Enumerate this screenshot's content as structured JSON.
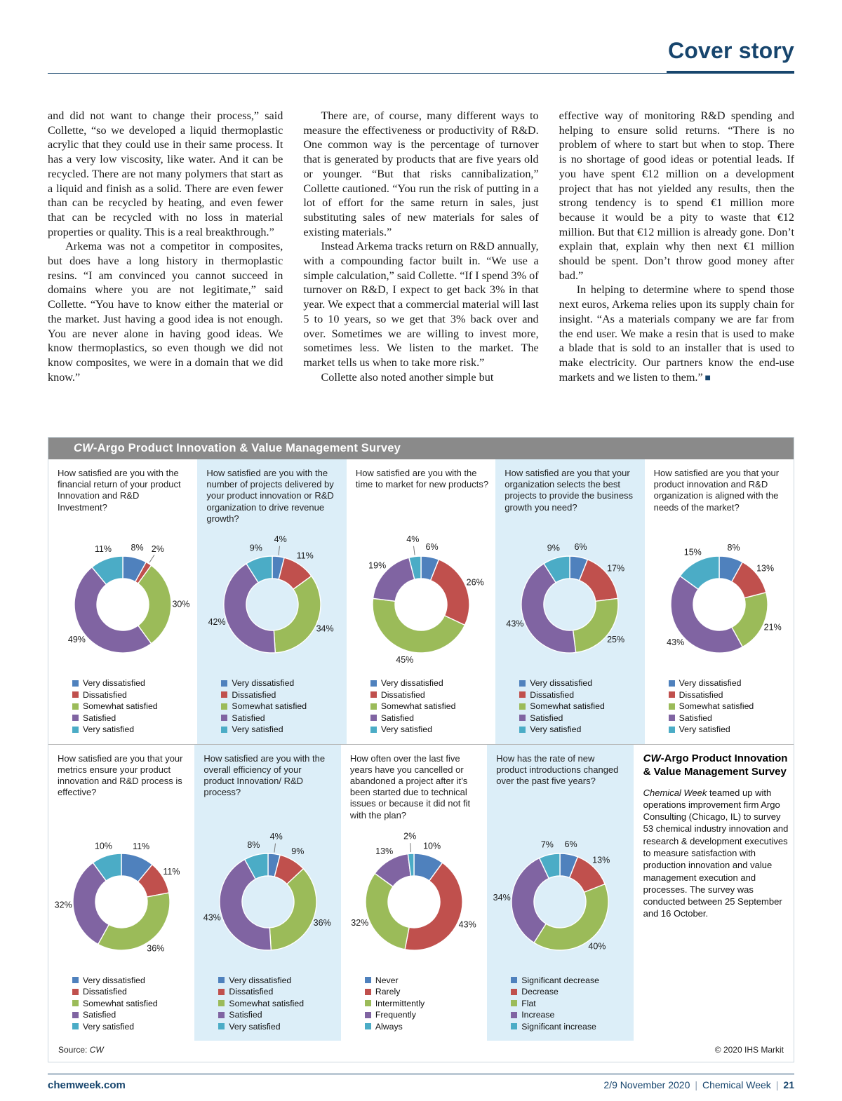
{
  "page": {
    "header_title": "Cover story",
    "footer": {
      "site": "chemweek.com",
      "date": "2/9 November 2020",
      "publication": "Chemical Week",
      "page_number": "21",
      "separator": "|"
    }
  },
  "article": {
    "columns": [
      {
        "paragraphs": [
          {
            "t": "and did not want to change their process,” said Collette, “so we developed a liquid thermoplastic acrylic that they could use in their same process. It has a very low viscosity, like water. And it can be recycled. There are not many polymers that start as a liquid and finish as a solid. There are even fewer than can be recycled by heating, and even fewer that can be recycled with no loss in material properties or quality. This is a real breakthrough.”",
            "ind": false
          },
          {
            "t": "Arkema was not a competitor in composites, but does have a long history in thermoplastic resins. “I am convinced you cannot succeed in domains where you are not legitimate,” said Collette. “You have to know either the material or the market. Just having a good idea is not enough. You are never alone in having good ideas. We know thermoplastics, so even though we did not know composites, we were in a domain that we did know.”",
            "ind": true
          }
        ]
      },
      {
        "paragraphs": [
          {
            "t": "There are, of course, many different ways to measure the effectiveness or productivity of R&D. One common way is the percentage of turnover that is generated by products that are five years old or younger. “But that risks cannibalization,” Collette cautioned. “You run the risk of putting in a lot of effort for the same return in sales, just substituting sales of new materials for sales of existing materials.”",
            "ind": true
          },
          {
            "t": "Instead Arkema tracks return on R&D annually, with a compounding factor built in. “We use a simple calculation,” said Collette. “If I spend 3% of turnover on R&D, I expect to get back 3% in that year. We expect that a commercial material will last 5 to 10 years, so we get that 3% back over and over. Sometimes we are willing to invest more, sometimes less. We listen to the market. The market tells us when to take more risk.”",
            "ind": true
          },
          {
            "t": "Collette also noted another simple but",
            "ind": true
          }
        ]
      },
      {
        "paragraphs": [
          {
            "t": "effective way of monitoring R&D spending and helping to ensure solid returns. “There is no problem of where to start but when to stop. There is no shortage of good ideas or potential leads. If you have spent €12 million on a development project that has not yielded any results, then the strong tendency is to spend €1 million more because it would be a pity to waste that €12 million. But that €12 million is already gone. Don’t explain that, explain why then next €1 million should be spent. Don’t throw good money after bad.”",
            "ind": false
          },
          {
            "t": "In helping to determine where to spend those next euros, Arkema relies upon its supply chain for insight. “As a materials company we are far from the end user. We make a resin that is used to make a blade that is sold to an installer that is used to make electricity. Our partners know the end-use markets and we listen to them.”",
            "ind": true,
            "endmark": true
          }
        ]
      }
    ]
  },
  "survey": {
    "banner": {
      "italic": "CW",
      "rest": "-Argo Product Innovation & Value Management Survey"
    },
    "source_label": "Source:",
    "source_value": "CW",
    "copyright": "© 2020 IHS Markit",
    "about": {
      "title_italic": "CW",
      "title_rest": "-Argo Product Innovation & Value Management Survey",
      "body_italic": "Chemical Week",
      "body_rest": " teamed up with operations improvement firm Argo Consulting (Chicago, IL) to survey 53 chemical industry innovation and research & development executives to measure satisfaction with production innovation and value management execution and processes. The survey was conducted between 25 September and 16 October."
    }
  },
  "palette": {
    "slice_colors": [
      "#4f81bd",
      "#c0504d",
      "#9bbb59",
      "#8064a2",
      "#4bacc6"
    ],
    "accent_navy": "#17456d",
    "banner_gray": "#8a8a8a",
    "tint_blue": "#dceef8"
  },
  "chart_data": [
    {
      "type": "pie",
      "title": "How satisfied are you with the financial return of your product Innovation and R&D Investment?",
      "labels": [
        "Very dissatisfied",
        "Dissatisfied",
        "Somewhat satisfied",
        "Satisfied",
        "Very satisfied"
      ],
      "values": [
        8,
        2,
        30,
        49,
        11
      ],
      "tint": false,
      "legend_position": "bottom"
    },
    {
      "type": "pie",
      "title": "How satisfied are you with the number of projects delivered by your product innovation or R&D organization to drive revenue growth?",
      "labels": [
        "Very dissatisfied",
        "Dissatisfied",
        "Somewhat satisfied",
        "Satisfied",
        "Very satisfied"
      ],
      "values": [
        4,
        11,
        34,
        42,
        9
      ],
      "tint": true,
      "legend_position": "bottom"
    },
    {
      "type": "pie",
      "title": "How satisfied are you with the time to market for new products?",
      "labels": [
        "Very dissatisfied",
        "Dissatisfied",
        "Somewhat satisfied",
        "Satisfied",
        "Very satisfied"
      ],
      "values": [
        6,
        26,
        45,
        19,
        4
      ],
      "tint": false,
      "legend_position": "bottom"
    },
    {
      "type": "pie",
      "title": "How satisfied are you that your organization selects the best projects to provide the business growth you need?",
      "labels": [
        "Very dissatisfied",
        "Dissatisfied",
        "Somewhat satisfied",
        "Satisfied",
        "Very satisfied"
      ],
      "values": [
        6,
        17,
        25,
        43,
        9
      ],
      "tint": true,
      "legend_position": "bottom"
    },
    {
      "type": "pie",
      "title": "How satisfied are you that your product innovation and R&D organization is aligned with the needs of the market?",
      "labels": [
        "Very dissatisfied",
        "Dissatisfied",
        "Somewhat satisfied",
        "Satisfied",
        "Very satisfied"
      ],
      "values": [
        8,
        13,
        21,
        43,
        15
      ],
      "tint": false,
      "legend_position": "bottom"
    },
    {
      "type": "pie",
      "title": "How satisfied are you that your metrics ensure your product innovation and R&D process is effective?",
      "labels": [
        "Very dissatisfied",
        "Dissatisfied",
        "Somewhat satisfied",
        "Satisfied",
        "Very satisfied"
      ],
      "values": [
        11,
        11,
        36,
        32,
        10
      ],
      "tint": false,
      "legend_position": "bottom"
    },
    {
      "type": "pie",
      "title": "How satisfied are you with the overall efficiency of your product Innovation/ R&D process?",
      "labels": [
        "Very dissatisfied",
        "Dissatisfied",
        "Somewhat satisfied",
        "Satisfied",
        "Very satisfied"
      ],
      "values": [
        4,
        9,
        36,
        43,
        8
      ],
      "tint": true,
      "legend_position": "bottom"
    },
    {
      "type": "pie",
      "title": "How often over the last five years have you cancelled or abandoned a project after it’s been started due to technical issues or because it did not fit with the plan?",
      "labels": [
        "Never",
        "Rarely",
        "Intermittently",
        "Frequently",
        "Always"
      ],
      "values": [
        10,
        43,
        32,
        13,
        2
      ],
      "tint": false,
      "legend_position": "bottom"
    },
    {
      "type": "pie",
      "title": "How has the rate of new product introductions changed over the past five years?",
      "labels": [
        "Significant decrease",
        "Decrease",
        "Flat",
        "Increase",
        "Significant increase"
      ],
      "values": [
        6,
        13,
        40,
        34,
        7
      ],
      "tint": true,
      "legend_position": "bottom"
    }
  ]
}
